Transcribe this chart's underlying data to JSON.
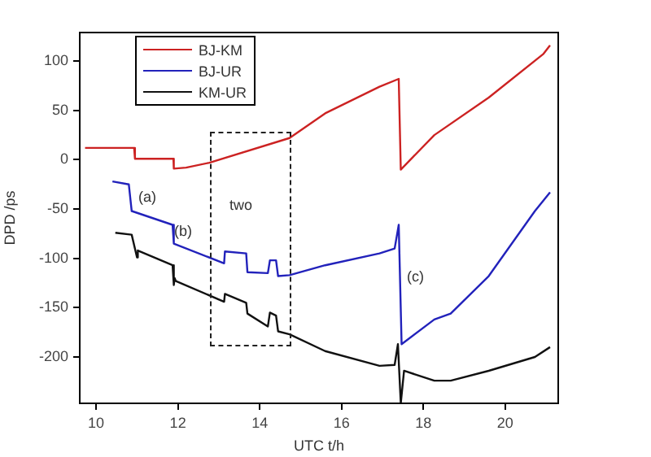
{
  "chart_data": {
    "type": "line",
    "xlabel": "UTC t/h",
    "ylabel": "DPD /ps",
    "xlim": [
      9.6,
      21.3
    ],
    "ylim": [
      -247,
      129
    ],
    "xticks": [
      10,
      12,
      14,
      16,
      18,
      20
    ],
    "yticks": [
      -200,
      -150,
      -100,
      -50,
      0,
      50,
      100
    ],
    "grid": false,
    "legend": "top left",
    "marker": "none",
    "line_style": "solid",
    "series": [
      {
        "name": "BJ-KM",
        "color": "#cc2222",
        "x": [
          9.73,
          10.93,
          10.95,
          11.89,
          11.9,
          12.2,
          12.77,
          14.73,
          15.6,
          16.93,
          17.4,
          17.45,
          18.27,
          19.6,
          20.93,
          21.1
        ],
        "values": [
          12,
          12,
          1,
          1,
          -9,
          -8,
          -3,
          22,
          47,
          74,
          82,
          -10,
          25,
          63,
          107,
          116
        ]
      },
      {
        "name": "BJ-UR",
        "color": "#2222bb",
        "x": [
          10.4,
          10.8,
          10.87,
          11.87,
          11.9,
          13.13,
          13.15,
          13.67,
          13.7,
          14.2,
          14.25,
          14.4,
          14.45,
          14.73,
          15.6,
          16.93,
          17.3,
          17.4,
          17.47,
          18.27,
          18.67,
          19.6,
          20.73,
          21.1
        ],
        "values": [
          -22,
          -25,
          -52,
          -66,
          -85,
          -105,
          -93,
          -95,
          -114,
          -115,
          -102,
          -102,
          -118,
          -117,
          -107,
          -95,
          -90,
          -66,
          -187,
          -162,
          -156,
          -118,
          -52,
          -33
        ]
      },
      {
        "name": "KM-UR",
        "color": "#111111",
        "x": [
          10.47,
          10.87,
          11.0,
          11.02,
          11.87,
          11.9,
          11.92,
          11.95,
          13.13,
          13.15,
          13.67,
          13.7,
          14.2,
          14.25,
          14.4,
          14.45,
          14.73,
          15.6,
          16.93,
          17.3,
          17.38,
          17.45,
          17.53,
          18.27,
          18.67,
          19.6,
          20.73,
          21.1
        ],
        "values": [
          -74,
          -76,
          -99,
          -92,
          -107,
          -127,
          -120,
          -123,
          -144,
          -136,
          -145,
          -156,
          -169,
          -155,
          -158,
          -174,
          -177,
          -194,
          -209,
          -208,
          -187,
          -247,
          -214,
          -224,
          -224,
          -214,
          -200,
          -190
        ]
      }
    ],
    "annotations": [
      "(a)",
      "(b)",
      "(c)",
      "two"
    ]
  }
}
